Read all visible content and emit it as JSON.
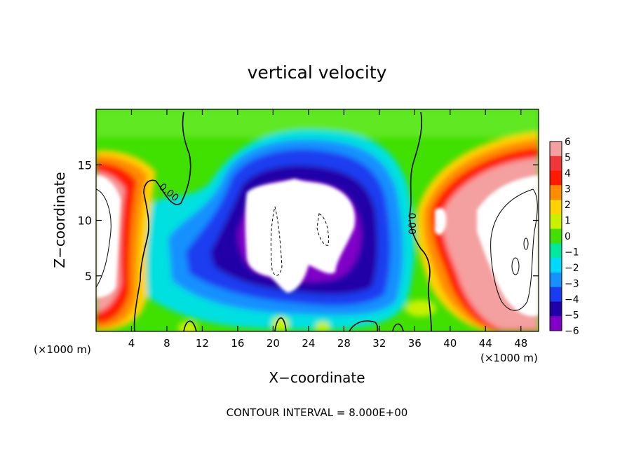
{
  "chart_data": {
    "type": "heatmap",
    "title": "vertical velocity",
    "xlabel": "X−coordinate",
    "ylabel": "Z−coordinate",
    "x_units": "(×1000 m)",
    "y_units": "(×1000 m)",
    "xlim": [
      0,
      50
    ],
    "ylim": [
      0,
      20
    ],
    "x_ticks": [
      4,
      8,
      12,
      16,
      20,
      24,
      28,
      32,
      36,
      40,
      44,
      48
    ],
    "y_ticks": [
      5,
      10,
      15
    ],
    "colorbar": {
      "levels": [
        6,
        5,
        4,
        3,
        2,
        1,
        0,
        -1,
        -2,
        -3,
        -4,
        -5,
        -6
      ],
      "labels": [
        "6",
        "5",
        "4",
        "3",
        "2",
        "1",
        "0",
        "−1",
        "−2",
        "−3",
        "−4",
        "−5",
        "−6"
      ],
      "colors": [
        "#f4a0a0",
        "#ee3838",
        "#ff1a00",
        "#ff8c00",
        "#ffd200",
        "#c8f000",
        "#40e000",
        "#00e8a0",
        "#00d8ff",
        "#1890ff",
        "#1a3cf0",
        "#2000a8",
        "#8000c8"
      ]
    },
    "contour_labels": [
      {
        "text": "0.00",
        "x": 8.0,
        "z": 12.3
      },
      {
        "text": "0.00",
        "x": 35.3,
        "z": 9.7
      }
    ],
    "contour_interval_text": "CONTOUR INTERVAL = 8.000E+00"
  }
}
